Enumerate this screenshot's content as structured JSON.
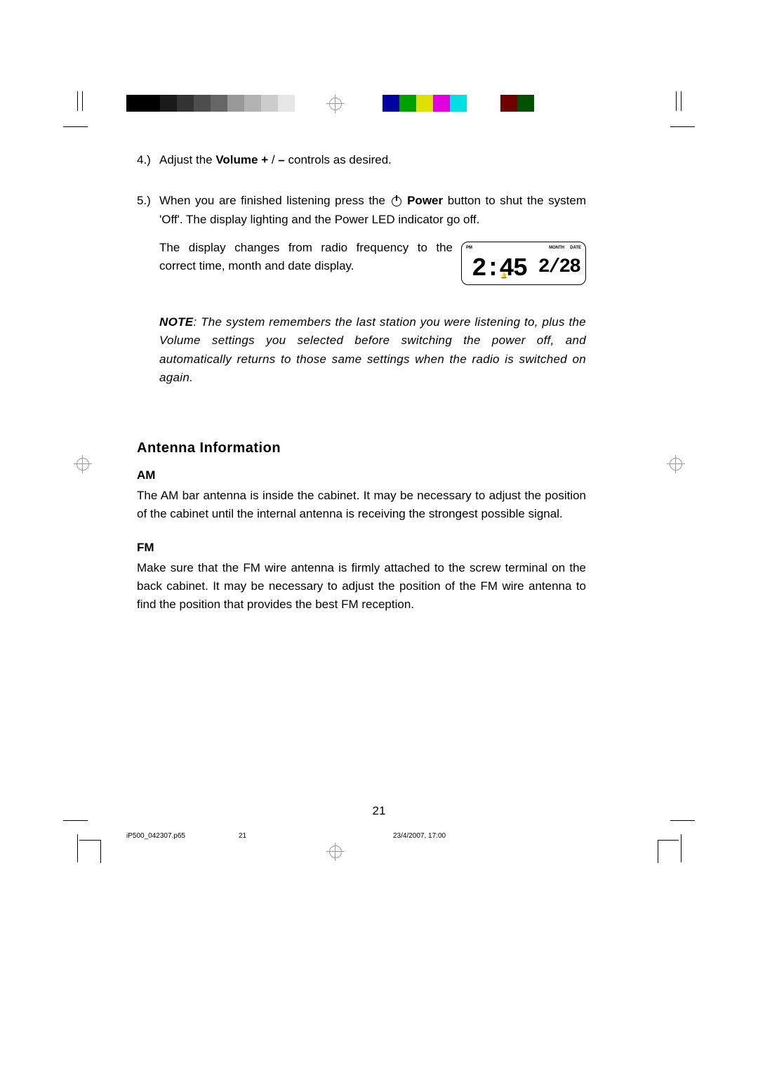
{
  "colorBars": {
    "grays": [
      "#000000",
      "#000000",
      "#1a1a1a",
      "#333333",
      "#4d4d4d",
      "#666666",
      "#999999",
      "#b3b3b3",
      "#cccccc",
      "#e6e6e6"
    ],
    "colors": [
      "#0000a0",
      "#00a000",
      "#e0e000",
      "#e000e0",
      "#00e0e0",
      "#ffffff",
      "#ffffff",
      "#700000",
      "#005000"
    ]
  },
  "list": {
    "item4": {
      "num": "4.)",
      "pre": "Adjust the ",
      "bold1": "Volume +",
      "mid": " / ",
      "bold2": "–",
      "post": " controls as desired."
    },
    "item5": {
      "num": "5.)",
      "pre": "When you are finished listening press the ",
      "bold": " Power",
      "post1": " button to shut the system 'Off'. The display lighting and the Power LED indicator go off.",
      "post2": "The display changes from radio frequency to the correct time, month and date display."
    }
  },
  "lcd": {
    "pm": "PM",
    "month": "MONTH",
    "date": "DATE",
    "time": "2:45",
    "datenum": "2/28"
  },
  "note": {
    "label": "NOTE",
    "text": ": The system remembers the last station you were listening to, plus the Volume settings you selected before switching the power off, and automatically returns to those same settings when the radio is switched on again."
  },
  "antenna": {
    "heading": "Antenna Information",
    "am_head": "AM",
    "am_text": "The AM bar antenna is inside the cabinet. It may be necessary to adjust the position of the cabinet until the internal antenna is receiving the strongest possible signal.",
    "fm_head": "FM",
    "fm_text": "Make sure that the FM wire antenna is firmly attached to the screw terminal on the back cabinet. It may be necessary to adjust the position of the FM wire antenna to find the position that provides the best FM reception."
  },
  "pageNum": "21",
  "footer": {
    "file": "iP500_042307.p65",
    "page": "21",
    "date": "23/4/2007, 17:00"
  }
}
